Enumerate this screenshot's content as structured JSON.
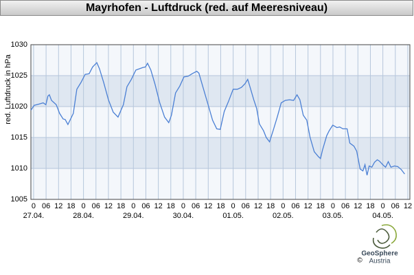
{
  "chart_data": {
    "type": "line",
    "title": "Mayrhofen - Luftdruck (red. auf Meeresniveau)",
    "ylabel": "red. Luftdruck in hPa",
    "ylim": [
      1005,
      1030
    ],
    "yticks": [
      1005,
      1010,
      1015,
      1020,
      1025,
      1030
    ],
    "xlim": [
      -1.3,
      181
    ],
    "xticks": [
      0,
      {
        "value": 6,
        "label": "06"
      },
      12,
      18,
      {
        "value": 24,
        "label": "0"
      },
      {
        "value": 30,
        "label": "06"
      },
      {
        "value": 36,
        "label": "12"
      },
      {
        "value": 42,
        "label": "18"
      },
      {
        "value": 48,
        "label": "0"
      },
      {
        "value": 54,
        "label": "06"
      },
      {
        "value": 60,
        "label": "12"
      },
      {
        "value": 66,
        "label": "18"
      },
      {
        "value": 72,
        "label": "0"
      },
      {
        "value": 78,
        "label": "06"
      },
      {
        "value": 84,
        "label": "12"
      },
      {
        "value": 90,
        "label": "18"
      },
      {
        "value": 96,
        "label": "0"
      },
      {
        "value": 102,
        "label": "06"
      },
      {
        "value": 108,
        "label": "12"
      },
      {
        "value": 114,
        "label": "18"
      },
      {
        "value": 120,
        "label": "0"
      },
      {
        "value": 126,
        "label": "06"
      },
      {
        "value": 132,
        "label": "12"
      },
      {
        "value": 138,
        "label": "18"
      },
      {
        "value": 144,
        "label": "0"
      },
      {
        "value": 150,
        "label": "06"
      },
      {
        "value": 156,
        "label": "12"
      },
      {
        "value": 162,
        "label": "18"
      },
      {
        "value": 168,
        "label": "0"
      },
      {
        "value": 174,
        "label": "06"
      },
      {
        "value": 180,
        "label": "12"
      }
    ],
    "dates": [
      {
        "value": 0,
        "label": "27.04."
      },
      {
        "value": 24,
        "label": "28.04."
      },
      {
        "value": 48,
        "label": "29.04."
      },
      {
        "value": 72,
        "label": "30.04."
      },
      {
        "value": 96,
        "label": "01.05."
      },
      {
        "value": 120,
        "label": "02.05."
      },
      {
        "value": 144,
        "label": "03.05."
      },
      {
        "value": 168,
        "label": "04.05."
      }
    ],
    "grid": true,
    "bands": true,
    "series": [
      {
        "color": "#4a7fd4",
        "x": [
          -1.3,
          0.3,
          2.6,
          4.6,
          5.9,
          6.9,
          7.6,
          8.6,
          10.9,
          12.5,
          14.2,
          15.2,
          16.5,
          19.1,
          20.8,
          22.8,
          24.8,
          26.7,
          28.4,
          30.4,
          31.7,
          33.7,
          36,
          38.3,
          40.6,
          43.2,
          44.9,
          47,
          49.2,
          52.5,
          53.8,
          54.8,
          56.4,
          58.4,
          60.7,
          63,
          65,
          66.3,
          68.3,
          70.3,
          72.3,
          74.3,
          76.2,
          78.5,
          79.5,
          81.5,
          84.2,
          86.1,
          88.1,
          89.8,
          91.7,
          93.7,
          96,
          98,
          100,
          101.7,
          103,
          104,
          105.9,
          107.3,
          108.6,
          110.6,
          111.9,
          113.5,
          115.2,
          117.2,
          119.1,
          121.1,
          123.1,
          125.1,
          126.7,
          128.1,
          129.7,
          131.4,
          133,
          135,
          137,
          138,
          139,
          141,
          142.2,
          143.9,
          145.9,
          147.2,
          148.8,
          150.8,
          152.1,
          154.1,
          155.4,
          157.1,
          158.4,
          159.4,
          160.4,
          161.4,
          162.7,
          164,
          165.3,
          166.3,
          168,
          169.3,
          170.6,
          171.9,
          173.6,
          175.2,
          176.9,
          178.5
        ],
        "values": [
          1019.4,
          1020.2,
          1020.4,
          1020.6,
          1020.3,
          1021.7,
          1021.9,
          1021,
          1020.3,
          1018.9,
          1018,
          1017.9,
          1017.1,
          1018.9,
          1022.8,
          1023.9,
          1025.2,
          1025.3,
          1026.4,
          1027.1,
          1026.1,
          1023.9,
          1021.1,
          1019.1,
          1018.3,
          1020.3,
          1023.2,
          1024.4,
          1025.9,
          1026.3,
          1026.4,
          1027,
          1025.9,
          1023.6,
          1020.6,
          1018.3,
          1017.4,
          1018.6,
          1022.2,
          1023.3,
          1024.8,
          1024.9,
          1025.3,
          1025.7,
          1025.4,
          1023.1,
          1020,
          1017.8,
          1016.4,
          1016.3,
          1019.2,
          1020.8,
          1022.8,
          1022.8,
          1023.1,
          1023.7,
          1024.4,
          1023.3,
          1021.1,
          1019.7,
          1017.2,
          1016.1,
          1015,
          1014.3,
          1016.1,
          1018.3,
          1020.6,
          1021,
          1021.1,
          1021,
          1021.9,
          1021.1,
          1018.6,
          1017.8,
          1015,
          1012.7,
          1011.9,
          1011.6,
          1013,
          1015.3,
          1016.1,
          1017,
          1016.6,
          1016.7,
          1016.4,
          1016.4,
          1014.1,
          1013.6,
          1012.8,
          1009.9,
          1009.6,
          1010.6,
          1008.9,
          1010.4,
          1010.2,
          1011,
          1011.4,
          1011.2,
          1010.6,
          1010.2,
          1011.1,
          1010.2,
          1010.4,
          1010.3,
          1009.8,
          1009.1
        ]
      }
    ]
  },
  "logo": {
    "name": "GeoSphere",
    "sub": "Austria",
    "copyright": "©"
  }
}
